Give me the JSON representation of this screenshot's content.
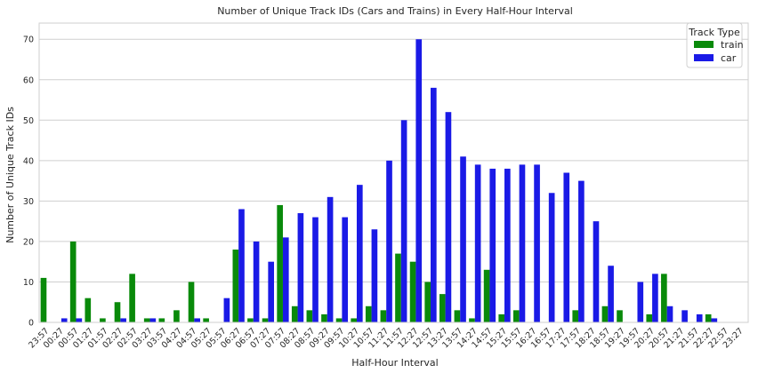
{
  "chart_data": {
    "type": "bar",
    "title": "Number of Unique Track IDs (Cars and Trains) in Every Half-Hour Interval",
    "xlabel": "Half-Hour Interval",
    "ylabel": "Number of Unique Track IDs",
    "ylim": [
      0,
      74
    ],
    "yticks": [
      0,
      10,
      20,
      30,
      40,
      50,
      60,
      70
    ],
    "grid": "y",
    "legend": {
      "title": "Track Type",
      "placement": "top-right"
    },
    "categories": [
      "23:57",
      "00:27",
      "00:57",
      "01:27",
      "01:57",
      "02:27",
      "02:57",
      "03:27",
      "03:57",
      "04:27",
      "04:57",
      "05:27",
      "05:57",
      "06:27",
      "06:57",
      "07:27",
      "07:57",
      "08:27",
      "08:57",
      "09:27",
      "09:57",
      "10:27",
      "10:57",
      "11:27",
      "11:57",
      "12:27",
      "12:57",
      "13:27",
      "13:57",
      "14:27",
      "14:57",
      "15:27",
      "15:57",
      "16:27",
      "16:57",
      "17:27",
      "17:57",
      "18:27",
      "18:57",
      "19:27",
      "19:57",
      "20:27",
      "20:57",
      "21:27",
      "21:57",
      "22:27",
      "22:57",
      "23:27"
    ],
    "series": [
      {
        "name": "train",
        "color": "#098a0a",
        "values": [
          11,
          0,
          20,
          6,
          1,
          5,
          12,
          1,
          1,
          3,
          10,
          1,
          0,
          18,
          1,
          1,
          29,
          4,
          3,
          2,
          1,
          1,
          4,
          3,
          17,
          15,
          10,
          7,
          3,
          1,
          13,
          2,
          3,
          0,
          0,
          0,
          3,
          0,
          4,
          3,
          0,
          2,
          12,
          0,
          0,
          2,
          0,
          0
        ]
      },
      {
        "name": "car",
        "color": "#1a1ae6",
        "values": [
          0,
          1,
          1,
          0,
          0,
          1,
          0,
          1,
          0,
          0,
          1,
          0,
          6,
          28,
          20,
          15,
          21,
          27,
          26,
          31,
          26,
          34,
          23,
          40,
          50,
          70,
          58,
          52,
          41,
          39,
          38,
          38,
          39,
          39,
          32,
          37,
          35,
          25,
          14,
          0,
          10,
          12,
          4,
          3,
          2,
          1,
          0,
          0
        ]
      }
    ]
  }
}
